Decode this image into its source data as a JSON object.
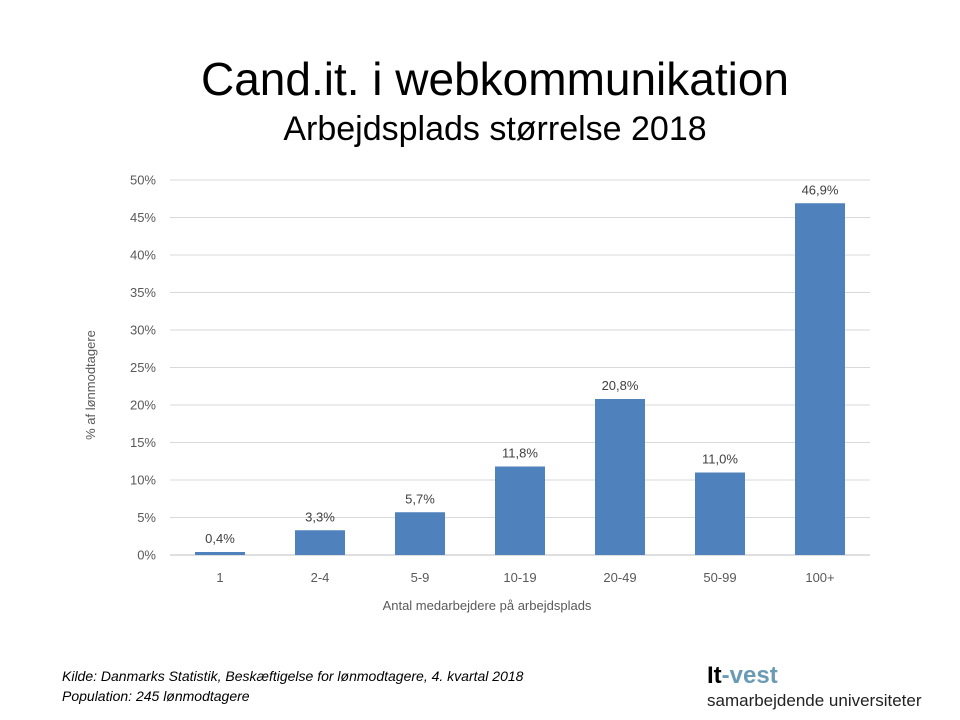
{
  "title": "Cand.it. i webkommunikation",
  "subtitle": "Arbejdsplads størrelse 2018",
  "chart_data": {
    "type": "bar",
    "categories": [
      "1",
      "2-4",
      "5-9",
      "10-19",
      "20-49",
      "50-99",
      "100+"
    ],
    "values": [
      0.4,
      3.3,
      5.7,
      11.8,
      20.8,
      11.0,
      46.9
    ],
    "data_labels": [
      "0,4%",
      "3,3%",
      "5,7%",
      "11,8%",
      "20,8%",
      "11,0%",
      "46,9%"
    ],
    "xlabel": "Antal medarbejdere på arbejdsplads",
    "ylabel": "% af lønmodtagere",
    "ylim": [
      0,
      50
    ],
    "yticks": [
      "0%",
      "5%",
      "10%",
      "15%",
      "20%",
      "25%",
      "30%",
      "35%",
      "40%",
      "45%",
      "50%"
    ],
    "grid": true,
    "bar_color": "#4F81BD"
  },
  "footer": {
    "source": "Kilde: Danmarks Statistik, Beskæftigelse for lønmodtagere, 4. kvartal 2018",
    "population": "Population: 245 lønmodtagere"
  },
  "logo": {
    "text_part1": "It",
    "text_part2": "-vest",
    "tagline": "samarbejdende universiteter",
    "accent": "#6A9BB5"
  }
}
